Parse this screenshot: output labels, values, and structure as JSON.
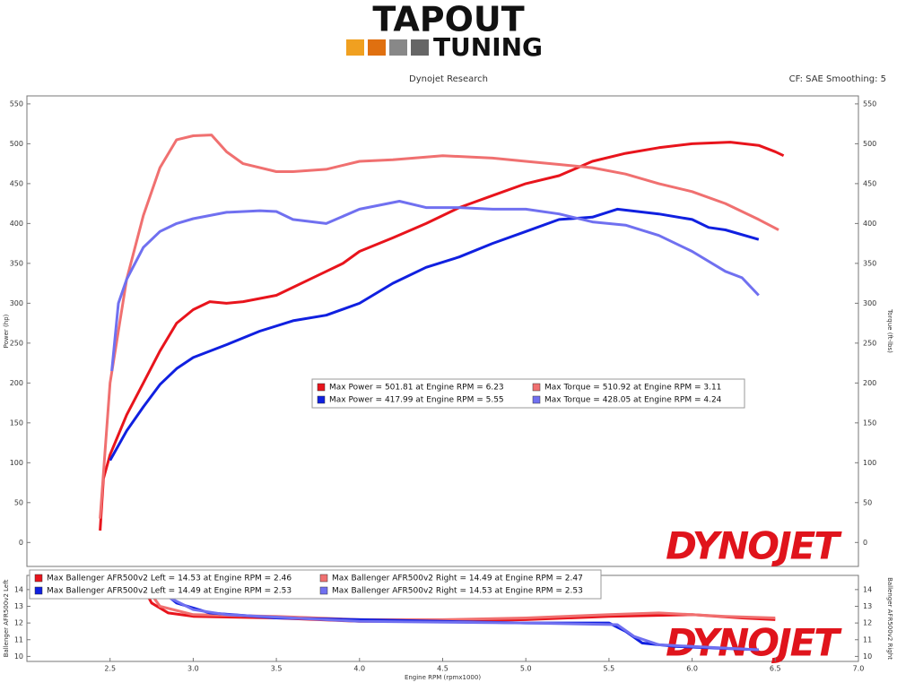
{
  "header": {
    "logo_top": "TAPOUT",
    "logo_bottom": "TUNING",
    "source": "Dynojet Research",
    "settings": "CF: SAE Smoothing: 5"
  },
  "chart_data": [
    {
      "type": "line",
      "ylabel": "Power (hp)",
      "y2label": "Torque (ft-lbs)",
      "watermark": "DYNOJET",
      "xlim": [
        2.0,
        7.0
      ],
      "ylim": [
        -30,
        560
      ],
      "yticks": [
        0,
        50,
        100,
        150,
        200,
        250,
        300,
        350,
        400,
        450,
        500,
        550
      ],
      "y2lim": [
        -30,
        560
      ],
      "y2ticks": [
        0,
        50,
        100,
        150,
        200,
        250,
        300,
        350,
        400,
        450,
        500,
        550
      ],
      "grid": false,
      "series": [
        {
          "name": "Max Power = 501.81 at Engine RPM = 6.23",
          "color": "#e8141c",
          "x": [
            2.44,
            2.46,
            2.5,
            2.6,
            2.7,
            2.8,
            2.9,
            3.0,
            3.1,
            3.2,
            3.3,
            3.5,
            3.6,
            3.7,
            3.8,
            3.9,
            4.0,
            4.2,
            4.4,
            4.6,
            4.8,
            5.0,
            5.2,
            5.4,
            5.6,
            5.8,
            6.0,
            6.23,
            6.4,
            6.5,
            6.55
          ],
          "values": [
            15,
            80,
            110,
            160,
            200,
            240,
            275,
            292,
            302,
            300,
            302,
            310,
            320,
            330,
            340,
            350,
            365,
            382,
            400,
            420,
            435,
            450,
            460,
            478,
            488,
            495,
            500,
            502,
            498,
            490,
            485
          ]
        },
        {
          "name": "Max Torque = 510.92 at Engine RPM = 3.11",
          "color": "#f07070",
          "x": [
            2.44,
            2.5,
            2.6,
            2.7,
            2.8,
            2.9,
            3.0,
            3.11,
            3.2,
            3.3,
            3.5,
            3.6,
            3.8,
            4.0,
            4.2,
            4.5,
            4.8,
            5.0,
            5.2,
            5.4,
            5.6,
            5.8,
            6.0,
            6.2,
            6.4,
            6.52
          ],
          "values": [
            30,
            200,
            330,
            410,
            470,
            505,
            510,
            511,
            490,
            475,
            465,
            465,
            468,
            478,
            480,
            485,
            482,
            478,
            474,
            470,
            462,
            450,
            440,
            425,
            405,
            392
          ]
        },
        {
          "name": "Max Power = 417.99 at Engine RPM = 5.55",
          "color": "#1020e0",
          "x": [
            2.5,
            2.6,
            2.7,
            2.8,
            2.9,
            3.0,
            3.2,
            3.4,
            3.6,
            3.8,
            4.0,
            4.2,
            4.4,
            4.6,
            4.8,
            5.0,
            5.2,
            5.4,
            5.55,
            5.8,
            6.0,
            6.1,
            6.2,
            6.4
          ],
          "values": [
            103,
            140,
            170,
            198,
            218,
            232,
            248,
            265,
            278,
            285,
            300,
            325,
            345,
            358,
            375,
            390,
            405,
            408,
            418,
            412,
            405,
            395,
            392,
            380
          ]
        },
        {
          "name": "Max Torque = 428.05 at Engine RPM = 4.24",
          "color": "#7070f0",
          "x": [
            2.51,
            2.55,
            2.6,
            2.7,
            2.8,
            2.9,
            3.0,
            3.2,
            3.4,
            3.5,
            3.6,
            3.8,
            4.0,
            4.24,
            4.4,
            4.6,
            4.8,
            5.0,
            5.2,
            5.4,
            5.6,
            5.8,
            6.0,
            6.2,
            6.3,
            6.4
          ],
          "values": [
            215,
            300,
            330,
            370,
            390,
            400,
            406,
            414,
            416,
            415,
            405,
            400,
            418,
            428,
            420,
            420,
            418,
            418,
            412,
            402,
            398,
            385,
            365,
            340,
            332,
            310
          ]
        }
      ]
    },
    {
      "type": "line",
      "ylabel": "Ballenger AFR500v2 Left",
      "y2label": "Ballenger AFR500v2 Right",
      "xlabel": "Engine RPM (rpmx1000)",
      "watermark": "DYNOJET",
      "xlim": [
        2.0,
        7.0
      ],
      "xticks": [
        2.5,
        {
          "value": 3,
          "label": "3.0"
        },
        3.5,
        {
          "value": 4,
          "label": "4.0"
        },
        4.5,
        {
          "value": 5,
          "label": "5.0"
        },
        5.5,
        {
          "value": 6,
          "label": "6.0"
        },
        6.5,
        {
          "value": 7,
          "label": "7.0"
        }
      ],
      "ylim": [
        9.7,
        14.85
      ],
      "yticks": [
        10,
        11,
        12,
        13,
        14
      ],
      "y2lim": [
        9.7,
        14.85
      ],
      "y2ticks": [
        10,
        11,
        12,
        13,
        14
      ],
      "grid": false,
      "series": [
        {
          "name": "Max Ballenger AFR500v2 Left = 14.53 at Engine RPM = 2.46",
          "color": "#e8141c",
          "x": [
            2.68,
            2.75,
            2.85,
            3.0,
            3.5,
            4.0,
            4.5,
            5.0,
            5.5,
            6.0,
            6.3,
            6.5
          ],
          "values": [
            14.5,
            13.2,
            12.6,
            12.4,
            12.3,
            12.1,
            12.1,
            12.2,
            12.4,
            12.5,
            12.3,
            12.2
          ]
        },
        {
          "name": "Max Ballenger AFR500v2 Right = 14.49 at Engine RPM = 2.47",
          "color": "#f07070",
          "x": [
            2.7,
            2.8,
            3.0,
            3.5,
            4.0,
            4.5,
            5.0,
            5.5,
            5.8,
            6.2,
            6.5
          ],
          "values": [
            14.4,
            13.0,
            12.5,
            12.4,
            12.2,
            12.2,
            12.3,
            12.5,
            12.6,
            12.4,
            12.3
          ]
        },
        {
          "name": "Max Ballenger AFR500v2 Left = 14.49 at Engine RPM = 2.53",
          "color": "#1020e0",
          "x": [
            2.8,
            2.9,
            3.1,
            3.5,
            4.0,
            4.5,
            5.0,
            5.5,
            5.6,
            5.7,
            5.9,
            6.4
          ],
          "values": [
            14.0,
            13.2,
            12.6,
            12.3,
            12.2,
            12.1,
            12.0,
            12.0,
            11.5,
            10.8,
            10.6,
            10.4
          ]
        },
        {
          "name": "Max Ballenger AFR500v2 Right = 14.53 at Engine RPM = 2.53",
          "color": "#7070f0",
          "x": [
            2.8,
            3.0,
            3.2,
            4.0,
            5.0,
            5.55,
            5.65,
            5.8,
            6.2,
            6.4
          ],
          "values": [
            13.8,
            12.8,
            12.5,
            12.1,
            12.0,
            11.9,
            11.2,
            10.7,
            10.5,
            10.4
          ]
        }
      ]
    }
  ]
}
